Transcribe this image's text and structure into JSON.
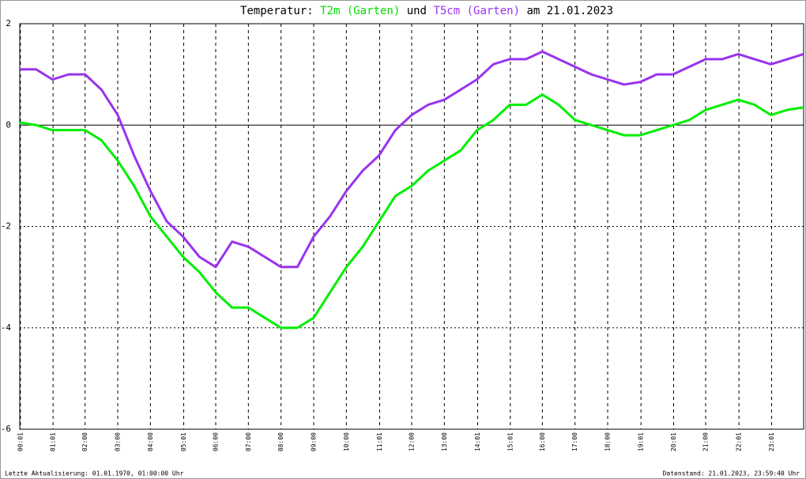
{
  "chart_data": {
    "type": "line",
    "title_prefix": "Temperatur:",
    "title_connector": "und",
    "title_suffix": "am 21.01.2023",
    "footer_left": "Letzte Aktualisierung: 01.01.1970, 01:00:00 Uhr",
    "footer_right": "Datenstand: 21.01.2023, 23:59:40 Uhr",
    "x": [
      0,
      0.5,
      1,
      1.5,
      2,
      2.5,
      3,
      3.5,
      4,
      4.5,
      5,
      5.5,
      6,
      6.5,
      7,
      7.5,
      8,
      8.5,
      9,
      9.5,
      10,
      10.5,
      11,
      11.5,
      12,
      12.5,
      13,
      13.5,
      14,
      14.5,
      15,
      15.5,
      16,
      16.5,
      17,
      17.5,
      18,
      18.5,
      19,
      19.5,
      20,
      20.5,
      21,
      21.5,
      22,
      22.5,
      23,
      23.5,
      24
    ],
    "series": [
      {
        "name": "T2m (Garten)",
        "color": "#00ee00",
        "values": [
          0.05,
          0.0,
          -0.1,
          -0.1,
          -0.1,
          -0.3,
          -0.7,
          -1.2,
          -1.8,
          -2.2,
          -2.6,
          -2.9,
          -3.3,
          -3.6,
          -3.6,
          -3.8,
          -4.0,
          -4.0,
          -3.8,
          -3.3,
          -2.8,
          -2.4,
          -1.9,
          -1.4,
          -1.2,
          -0.9,
          -0.7,
          -0.5,
          -0.1,
          0.1,
          0.4,
          0.4,
          0.6,
          0.4,
          0.1,
          0.0,
          -0.1,
          -0.2,
          -0.2,
          -0.1,
          0.0,
          0.1,
          0.3,
          0.4,
          0.5,
          0.4,
          0.2,
          0.3,
          0.35
        ]
      },
      {
        "name": "T5cm (Garten)",
        "color": "#9933ee",
        "values": [
          1.1,
          1.1,
          0.9,
          1.0,
          1.0,
          0.7,
          0.2,
          -0.6,
          -1.3,
          -1.9,
          -2.2,
          -2.6,
          -2.8,
          -2.3,
          -2.4,
          -2.6,
          -2.8,
          -2.8,
          -2.2,
          -1.8,
          -1.3,
          -0.9,
          -0.6,
          -0.1,
          0.2,
          0.4,
          0.5,
          0.7,
          0.9,
          1.2,
          1.3,
          1.3,
          1.45,
          1.3,
          1.15,
          1.0,
          0.9,
          0.8,
          0.85,
          1.0,
          1.0,
          1.15,
          1.3,
          1.3,
          1.4,
          1.3,
          1.2,
          1.3,
          1.4
        ]
      }
    ],
    "xlim": [
      0,
      24
    ],
    "xticks": [
      {
        "value": 0.02,
        "label": "00:01"
      },
      {
        "value": 1.02,
        "label": "01:01"
      },
      {
        "value": 2,
        "label": "02:00"
      },
      {
        "value": 3,
        "label": "03:00"
      },
      {
        "value": 4,
        "label": "04:00"
      },
      {
        "value": 5.02,
        "label": "05:01"
      },
      {
        "value": 6,
        "label": "06:00"
      },
      {
        "value": 7,
        "label": "07:00"
      },
      {
        "value": 8,
        "label": "08:00"
      },
      {
        "value": 9,
        "label": "09:00"
      },
      {
        "value": 10,
        "label": "10:00"
      },
      {
        "value": 11.02,
        "label": "11:01"
      },
      {
        "value": 12,
        "label": "12:00"
      },
      {
        "value": 13,
        "label": "13:00"
      },
      {
        "value": 14.02,
        "label": "14:01"
      },
      {
        "value": 15.02,
        "label": "15:01"
      },
      {
        "value": 16,
        "label": "16:00"
      },
      {
        "value": 17,
        "label": "17:00"
      },
      {
        "value": 18,
        "label": "18:00"
      },
      {
        "value": 19.02,
        "label": "19:01"
      },
      {
        "value": 20.02,
        "label": "20:01"
      },
      {
        "value": 21,
        "label": "21:00"
      },
      {
        "value": 22.02,
        "label": "22:01"
      },
      {
        "value": 23.02,
        "label": "23:01"
      }
    ],
    "ylim": [
      -6,
      2
    ],
    "yticks": [
      2,
      0,
      -2,
      -4,
      -6
    ],
    "grid": true
  }
}
